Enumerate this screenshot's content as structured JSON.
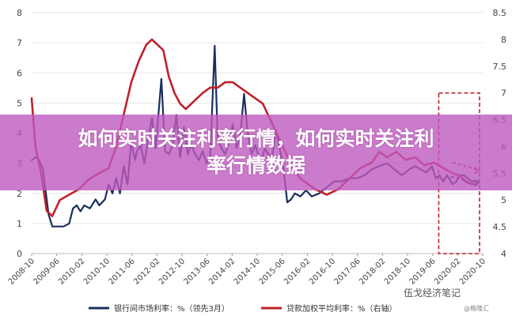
{
  "banner": {
    "line1": "如何实时关注利率行情，如何实时关注利",
    "line2": "率行情数据"
  },
  "watermark": {
    "text": "伍戈经济笔记",
    "sub": "@格隆汇"
  },
  "colors": {
    "series1": "#1a2f5e",
    "series2": "#c0202a",
    "highlight_box": "#c0202a",
    "grid": "#e6e6e6"
  },
  "chart_data": {
    "type": "line",
    "left_axis": {
      "ylim": [
        0,
        8
      ],
      "ticks": [
        "0",
        "1",
        "2",
        "3",
        "4",
        "5",
        "6",
        "7",
        "8"
      ]
    },
    "right_axis": {
      "ylim": [
        4,
        8.5
      ],
      "ticks": [
        "4",
        "4.5",
        "5",
        "5.5",
        "6",
        "6.5",
        "7",
        "7.5",
        "8",
        "8.5"
      ]
    },
    "x_ticks": [
      "2008-10",
      "2009-06",
      "2010-02",
      "2010-10",
      "2011-06",
      "2012-02",
      "2012-10",
      "2013-06",
      "2014-02",
      "2014-10",
      "2015-06",
      "2016-02",
      "2016-10",
      "2017-06",
      "2018-02",
      "2018-10",
      "2019-06",
      "2020-02",
      "2020-10"
    ],
    "x_range": [
      2008.75,
      2020.75
    ],
    "highlight": {
      "x_start": 2019.58,
      "x_end": 2020.75,
      "y_start": 4.0,
      "y_end": 7.0,
      "axis": "right"
    },
    "series": [
      {
        "name": "银行间市场利率：%（领先3月）",
        "axis": "left",
        "points": [
          [
            2008.75,
            3.1
          ],
          [
            2008.85,
            3.2
          ],
          [
            2008.95,
            3.1
          ],
          [
            2009.05,
            2.8
          ],
          [
            2009.2,
            1.3
          ],
          [
            2009.3,
            0.9
          ],
          [
            2009.45,
            0.9
          ],
          [
            2009.6,
            0.9
          ],
          [
            2009.75,
            1.0
          ],
          [
            2009.85,
            1.5
          ],
          [
            2009.95,
            1.6
          ],
          [
            2010.05,
            1.4
          ],
          [
            2010.15,
            1.6
          ],
          [
            2010.3,
            1.5
          ],
          [
            2010.45,
            1.8
          ],
          [
            2010.55,
            1.6
          ],
          [
            2010.7,
            1.8
          ],
          [
            2010.8,
            2.3
          ],
          [
            2010.9,
            2.0
          ],
          [
            2011.0,
            2.5
          ],
          [
            2011.1,
            2.0
          ],
          [
            2011.2,
            2.9
          ],
          [
            2011.3,
            2.3
          ],
          [
            2011.4,
            3.7
          ],
          [
            2011.5,
            3.1
          ],
          [
            2011.55,
            3.4
          ],
          [
            2011.65,
            3.6
          ],
          [
            2011.75,
            3.0
          ],
          [
            2011.85,
            3.8
          ],
          [
            2011.95,
            4.5
          ],
          [
            2012.05,
            3.5
          ],
          [
            2012.2,
            5.8
          ],
          [
            2012.3,
            3.4
          ],
          [
            2012.4,
            3.3
          ],
          [
            2012.5,
            3.6
          ],
          [
            2012.6,
            4.6
          ],
          [
            2012.7,
            3.2
          ],
          [
            2012.8,
            4.2
          ],
          [
            2012.9,
            3.3
          ],
          [
            2013.0,
            3.6
          ],
          [
            2013.1,
            3.3
          ],
          [
            2013.2,
            3.1
          ],
          [
            2013.3,
            3.4
          ],
          [
            2013.4,
            3.0
          ],
          [
            2013.5,
            3.2
          ],
          [
            2013.62,
            6.9
          ],
          [
            2013.7,
            3.8
          ],
          [
            2013.8,
            3.5
          ],
          [
            2013.9,
            3.3
          ],
          [
            2014.0,
            3.7
          ],
          [
            2014.1,
            4.3
          ],
          [
            2014.2,
            3.5
          ],
          [
            2014.3,
            3.9
          ],
          [
            2014.4,
            5.3
          ],
          [
            2014.5,
            4.0
          ],
          [
            2014.6,
            3.3
          ],
          [
            2014.7,
            3.6
          ],
          [
            2014.85,
            3.0
          ],
          [
            2014.95,
            3.5
          ],
          [
            2015.05,
            3.3
          ],
          [
            2015.15,
            3.2
          ],
          [
            2015.25,
            4.1
          ],
          [
            2015.35,
            3.5
          ],
          [
            2015.45,
            2.8
          ],
          [
            2015.55,
            1.7
          ],
          [
            2015.65,
            1.8
          ],
          [
            2015.75,
            2.0
          ],
          [
            2015.9,
            1.9
          ],
          [
            2016.05,
            2.1
          ],
          [
            2016.2,
            1.9
          ],
          [
            2016.4,
            2.0
          ],
          [
            2016.6,
            2.2
          ],
          [
            2016.8,
            2.4
          ],
          [
            2017.0,
            2.4
          ],
          [
            2017.2,
            2.5
          ],
          [
            2017.4,
            2.5
          ],
          [
            2017.6,
            2.6
          ],
          [
            2017.8,
            2.8
          ],
          [
            2018.0,
            2.9
          ],
          [
            2018.2,
            3.0
          ],
          [
            2018.4,
            2.8
          ],
          [
            2018.6,
            2.6
          ],
          [
            2018.8,
            2.8
          ],
          [
            2018.95,
            2.9
          ],
          [
            2019.1,
            2.8
          ],
          [
            2019.25,
            2.7
          ],
          [
            2019.4,
            2.9
          ],
          [
            2019.5,
            2.5
          ],
          [
            2019.6,
            2.6
          ],
          [
            2019.7,
            2.4
          ],
          [
            2019.8,
            2.6
          ],
          [
            2019.95,
            2.3
          ],
          [
            2020.05,
            2.4
          ],
          [
            2020.15,
            2.6
          ],
          [
            2020.25,
            2.6
          ],
          [
            2020.35,
            2.5
          ],
          [
            2020.45,
            2.4
          ],
          [
            2020.55,
            2.4
          ],
          [
            2020.65,
            2.4
          ]
        ]
      },
      {
        "name": "贷款加权平均利率：%（右轴）",
        "axis": "right",
        "points": [
          [
            2008.75,
            6.9
          ],
          [
            2008.85,
            6.0
          ],
          [
            2009.0,
            5.5
          ],
          [
            2009.15,
            4.8
          ],
          [
            2009.3,
            4.7
          ],
          [
            2009.5,
            5.0
          ],
          [
            2009.75,
            5.1
          ],
          [
            2010.0,
            5.2
          ],
          [
            2010.3,
            5.4
          ],
          [
            2010.55,
            5.5
          ],
          [
            2010.8,
            5.6
          ],
          [
            2011.0,
            6.0
          ],
          [
            2011.2,
            6.6
          ],
          [
            2011.4,
            7.2
          ],
          [
            2011.6,
            7.6
          ],
          [
            2011.8,
            7.9
          ],
          [
            2011.95,
            8.0
          ],
          [
            2012.1,
            7.9
          ],
          [
            2012.25,
            7.8
          ],
          [
            2012.4,
            7.3
          ],
          [
            2012.55,
            7.0
          ],
          [
            2012.7,
            6.8
          ],
          [
            2012.85,
            6.7
          ],
          [
            2013.0,
            6.8
          ],
          [
            2013.15,
            6.9
          ],
          [
            2013.3,
            7.0
          ],
          [
            2013.5,
            7.1
          ],
          [
            2013.7,
            7.1
          ],
          [
            2013.9,
            7.2
          ],
          [
            2014.1,
            7.2
          ],
          [
            2014.3,
            7.1
          ],
          [
            2014.5,
            7.0
          ],
          [
            2014.7,
            6.9
          ],
          [
            2014.9,
            6.8
          ],
          [
            2015.1,
            6.5
          ],
          [
            2015.3,
            6.2
          ],
          [
            2015.5,
            5.9
          ],
          [
            2015.7,
            5.6
          ],
          [
            2015.9,
            5.4
          ],
          [
            2016.1,
            5.3
          ],
          [
            2016.3,
            5.2
          ],
          [
            2016.6,
            5.1
          ],
          [
            2016.9,
            5.2
          ],
          [
            2017.2,
            5.4
          ],
          [
            2017.5,
            5.6
          ],
          [
            2017.8,
            5.7
          ],
          [
            2018.0,
            5.9
          ],
          [
            2018.2,
            5.8
          ],
          [
            2018.45,
            5.9
          ],
          [
            2018.7,
            5.75
          ],
          [
            2018.95,
            5.8
          ],
          [
            2019.2,
            5.65
          ],
          [
            2019.45,
            5.7
          ],
          [
            2019.7,
            5.6
          ],
          [
            2019.95,
            5.5
          ],
          [
            2020.15,
            5.45
          ],
          [
            2020.3,
            5.35
          ],
          [
            2020.45,
            5.3
          ],
          [
            2020.6,
            5.3
          ]
        ]
      }
    ],
    "forecast_series": [
      {
        "axis": "left",
        "points": [
          [
            2019.9,
            2.55
          ],
          [
            2020.15,
            2.5
          ],
          [
            2020.4,
            2.3
          ],
          [
            2020.65,
            2.35
          ]
        ]
      },
      {
        "axis": "right",
        "points": [
          [
            2019.95,
            5.7
          ],
          [
            2020.2,
            5.65
          ],
          [
            2020.45,
            5.6
          ],
          [
            2020.65,
            5.55
          ]
        ]
      }
    ]
  }
}
